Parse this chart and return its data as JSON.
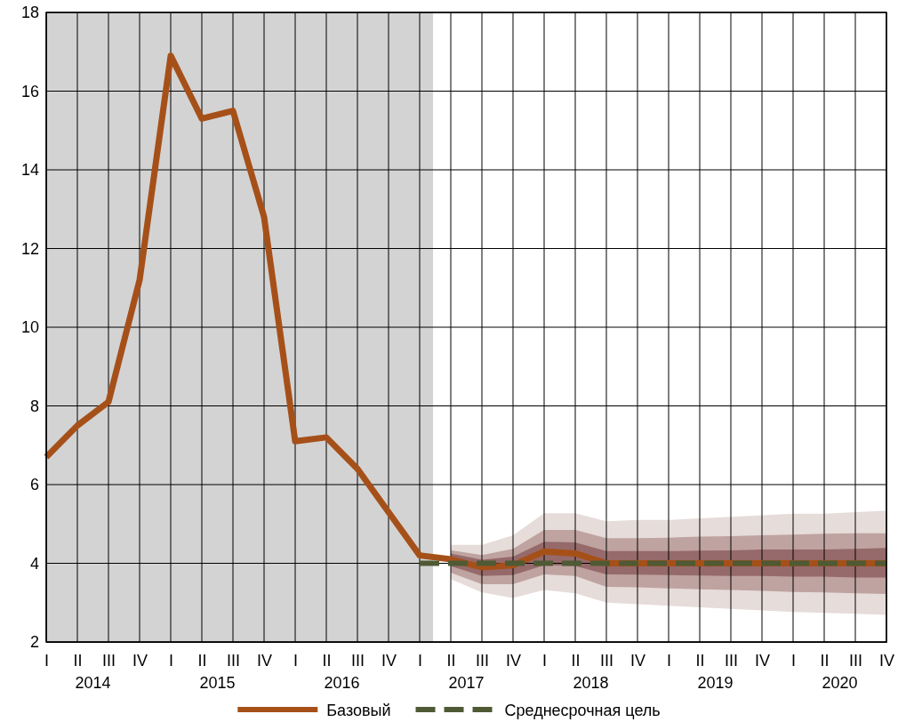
{
  "chart_data": {
    "type": "line",
    "categories": [
      "I",
      "II",
      "III",
      "IV",
      "I",
      "II",
      "III",
      "IV",
      "I",
      "II",
      "III",
      "IV",
      "I",
      "II",
      "III",
      "IV",
      "I",
      "II",
      "III",
      "IV",
      "I",
      "II",
      "III",
      "IV",
      "I",
      "II",
      "III",
      "IV"
    ],
    "series": [
      {
        "type": "area",
        "color": "#e6dcd9",
        "values": [
          null,
          null,
          null,
          null,
          null,
          null,
          null,
          null,
          null,
          null,
          null,
          null,
          null,
          null,
          null,
          null,
          null,
          null,
          null,
          null,
          null,
          null,
          null,
          null,
          null,
          null,
          null,
          null
        ],
        "upper": [
          null,
          null,
          null,
          null,
          null,
          null,
          null,
          null,
          null,
          null,
          null,
          null,
          null,
          4.47,
          4.47,
          4.71,
          5.27,
          5.27,
          5.07,
          5.1,
          5.1,
          5.14,
          5.18,
          5.22,
          5.26,
          5.26,
          5.3,
          5.34
        ],
        "lower": [
          null,
          null,
          null,
          null,
          null,
          null,
          null,
          null,
          null,
          null,
          null,
          null,
          null,
          3.6,
          3.26,
          3.12,
          3.32,
          3.24,
          3.0,
          2.96,
          2.92,
          2.88,
          2.84,
          2.8,
          2.76,
          2.74,
          2.72,
          2.69
        ]
      },
      {
        "type": "area",
        "color": "#bfa3a0",
        "values": [
          null,
          null,
          null,
          null,
          null,
          null,
          null,
          null,
          null,
          null,
          null,
          null,
          null,
          null,
          null,
          null,
          null,
          null,
          null,
          null,
          null,
          null,
          null,
          null,
          null,
          null,
          null,
          null
        ],
        "upper": [
          null,
          null,
          null,
          null,
          null,
          null,
          null,
          null,
          null,
          null,
          null,
          null,
          null,
          4.33,
          4.21,
          4.37,
          4.85,
          4.85,
          4.64,
          4.64,
          4.65,
          4.68,
          4.69,
          4.71,
          4.73,
          4.75,
          4.76,
          4.76
        ],
        "lower": [
          null,
          null,
          null,
          null,
          null,
          null,
          null,
          null,
          null,
          null,
          null,
          null,
          null,
          3.76,
          3.47,
          3.47,
          3.72,
          3.68,
          3.4,
          3.39,
          3.36,
          3.34,
          3.32,
          3.3,
          3.27,
          3.26,
          3.24,
          3.22
        ]
      },
      {
        "type": "area",
        "color": "#966a6a",
        "values": [
          null,
          null,
          null,
          null,
          null,
          null,
          null,
          null,
          null,
          null,
          null,
          null,
          null,
          null,
          null,
          null,
          null,
          null,
          null,
          null,
          null,
          null,
          null,
          null,
          null,
          null,
          null,
          null
        ],
        "upper": [
          null,
          null,
          null,
          null,
          null,
          null,
          null,
          null,
          null,
          null,
          null,
          null,
          null,
          4.25,
          4.09,
          4.17,
          4.55,
          4.53,
          4.31,
          4.31,
          4.31,
          4.32,
          4.33,
          4.35,
          4.35,
          4.35,
          4.37,
          4.39
        ],
        "lower": [
          null,
          null,
          null,
          null,
          null,
          null,
          null,
          null,
          null,
          null,
          null,
          null,
          null,
          3.93,
          3.68,
          3.7,
          3.95,
          3.93,
          3.72,
          3.71,
          3.7,
          3.69,
          3.68,
          3.68,
          3.66,
          3.66,
          3.64,
          3.64
        ]
      },
      {
        "name": "Базовый",
        "type": "line",
        "color": "#a65019",
        "values": [
          6.7,
          7.5,
          8.1,
          11.2,
          16.9,
          15.3,
          15.5,
          12.8,
          7.1,
          7.2,
          6.4,
          5.3,
          4.2,
          4.1,
          3.9,
          3.95,
          4.3,
          4.25,
          4.0,
          4.0,
          4.0,
          4.0,
          4.0,
          4.0,
          4.0,
          4.0,
          4.0,
          4.0
        ]
      },
      {
        "name": "Среднесрочная цель",
        "type": "line",
        "line_style": "dashed",
        "color": "#4f5a35",
        "values": [
          null,
          null,
          null,
          null,
          null,
          null,
          null,
          null,
          null,
          null,
          null,
          null,
          4,
          4,
          4,
          4,
          4,
          4,
          4,
          4,
          4,
          4,
          4,
          4,
          4,
          4,
          4,
          4
        ]
      }
    ],
    "ylim": [
      2,
      18
    ],
    "yticks": [
      2,
      4,
      6,
      8,
      10,
      12,
      14,
      16,
      18
    ],
    "annotations": [
      "2014",
      "2015",
      "2016",
      "2017",
      "2018",
      "2019",
      "2020"
    ],
    "grid": true,
    "legend": "bottom"
  }
}
